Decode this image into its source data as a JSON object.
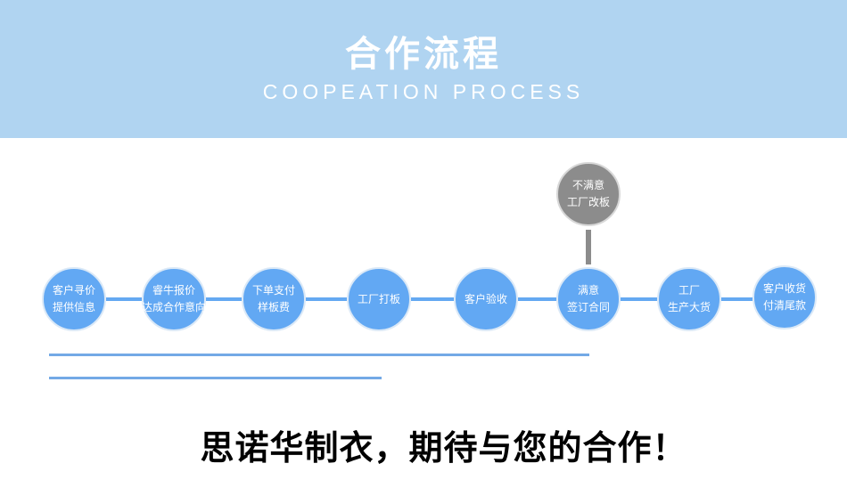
{
  "header": {
    "title": "合作流程",
    "subtitle": "COOPEATION PROCESS"
  },
  "steps": [
    {
      "line1": "客户寻价",
      "line2": "提供信息"
    },
    {
      "line1": "睿牛报价",
      "line2": "达成合作意向"
    },
    {
      "line1": "下单支付",
      "line2": "样板费"
    },
    {
      "line1": "工厂打板",
      "line2": ""
    },
    {
      "line1": "客户验收",
      "line2": ""
    },
    {
      "line1": "满意",
      "line2": "签订合同"
    },
    {
      "line1": "工厂",
      "line2": "生产大货"
    },
    {
      "line1": "客户收货",
      "line2": "付清尾款"
    }
  ],
  "branch": {
    "line1": "不满意",
    "line2": "工厂改板"
  },
  "slogan": "思诺华制衣，期待与您的合作！",
  "colors": {
    "header": "#b0d4f1",
    "step": "#62a8f3",
    "branch": "#8c8c8c"
  }
}
